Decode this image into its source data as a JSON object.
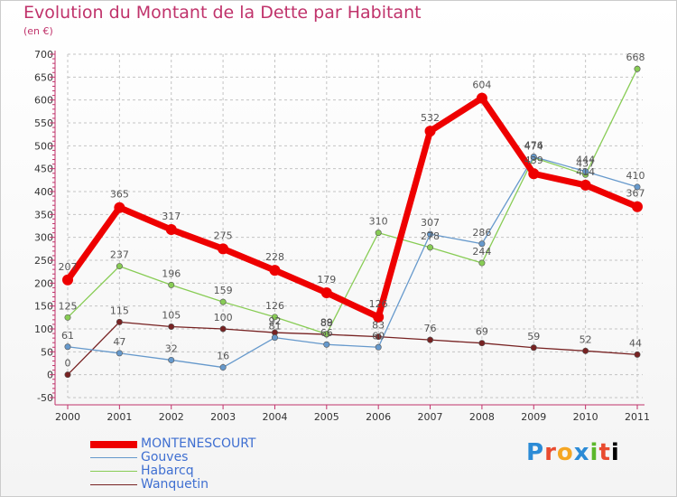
{
  "title": "Evolution du Montant de la Dette par Habitant",
  "subtitle": "(en €)",
  "logo": "Proxiti",
  "colors": {
    "title": "#c0336b",
    "grid": "#bbbbbb",
    "axis": "#c0336b"
  },
  "chart_data": {
    "type": "line",
    "title": "Evolution du Montant de la Dette par Habitant",
    "ylabel": "(en €)",
    "xlabel": "",
    "ylim": [
      -50,
      700
    ],
    "yticks": [
      -50,
      0,
      50,
      100,
      150,
      200,
      250,
      300,
      350,
      400,
      450,
      500,
      550,
      600,
      650,
      700
    ],
    "grid": true,
    "legend": "bottom-left",
    "x": [
      "2000",
      "2001",
      "2002",
      "2003",
      "2004",
      "2005",
      "2006",
      "2007",
      "2008",
      "2009",
      "2010",
      "2011"
    ],
    "series": [
      {
        "name": "MONTENESCOURT",
        "color": "#ee0000",
        "values": [
          207,
          365,
          317,
          275,
          228,
          179,
          126,
          532,
          604,
          439,
          414,
          367
        ]
      },
      {
        "name": "Gouves",
        "color": "#6699cc",
        "values": [
          61,
          47,
          32,
          16,
          81,
          66,
          60,
          307,
          286,
          476,
          444,
          410
        ]
      },
      {
        "name": "Habarcq",
        "color": "#88cc55",
        "values": [
          125,
          237,
          196,
          159,
          126,
          89,
          310,
          278,
          244,
          474,
          437,
          668
        ]
      },
      {
        "name": "Wanquetin",
        "color": "#772222",
        "values": [
          0,
          115,
          105,
          100,
          92,
          88,
          83,
          76,
          69,
          59,
          52,
          44
        ]
      }
    ],
    "data_labels": [
      [
        "207",
        "365",
        "317",
        "275",
        "228",
        "179",
        "126",
        "532",
        "604",
        "439",
        "414",
        "367"
      ],
      [
        "61",
        "47",
        "32",
        "16",
        "81",
        "66",
        "60",
        "307",
        "286",
        "476",
        "444",
        "410"
      ],
      [
        "125",
        "237",
        "196",
        "159",
        "126",
        "89",
        "310",
        "278",
        "244",
        "474",
        "437",
        "668"
      ],
      [
        "0",
        "115",
        "105",
        "100",
        "92",
        "88",
        "83",
        "76",
        "69",
        "59",
        "52",
        "44"
      ]
    ]
  }
}
